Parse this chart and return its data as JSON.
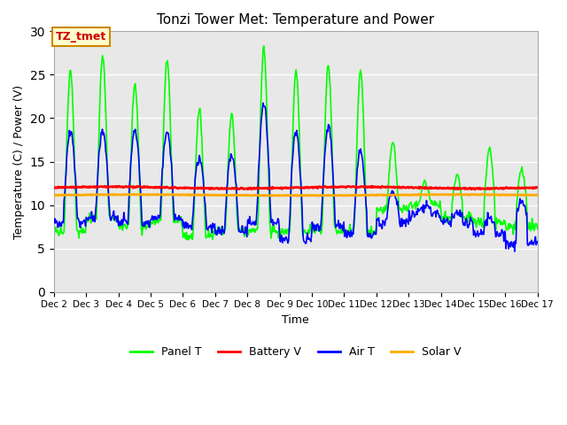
{
  "title": "Tonzi Tower Met: Temperature and Power",
  "xlabel": "Time",
  "ylabel": "Temperature (C) / Power (V)",
  "ylim": [
    0,
    30
  ],
  "yticks": [
    0,
    5,
    10,
    15,
    20,
    25,
    30
  ],
  "x_tick_days": [
    2,
    3,
    4,
    5,
    6,
    7,
    8,
    9,
    10,
    11,
    12,
    13,
    14,
    15,
    16,
    17
  ],
  "x_tick_labels": [
    "Dec 2",
    "Dec 3",
    "Dec 4",
    "Dec 5",
    "Dec 6",
    "Dec 7",
    "Dec 8",
    "Dec 9",
    "Dec 10",
    "Dec 11",
    "Dec 12",
    "Dec 13",
    "Dec 14",
    "Dec 15",
    "Dec 16",
    "Dec 17"
  ],
  "background_color": "#e8e8e8",
  "figure_bg": "#ffffff",
  "annotation_text": "TZ_tmet",
  "annotation_box_color": "#ffffcc",
  "annotation_text_color": "#cc0000",
  "panel_t_color": "#00ff00",
  "battery_v_color": "#ff0000",
  "air_t_color": "#0000ff",
  "solar_v_color": "#ffaa00",
  "panel_t_lw": 1.2,
  "battery_v_lw": 2.0,
  "air_t_lw": 1.2,
  "solar_v_lw": 2.0,
  "grid_color": "#ffffff",
  "grid_lw": 1.0
}
